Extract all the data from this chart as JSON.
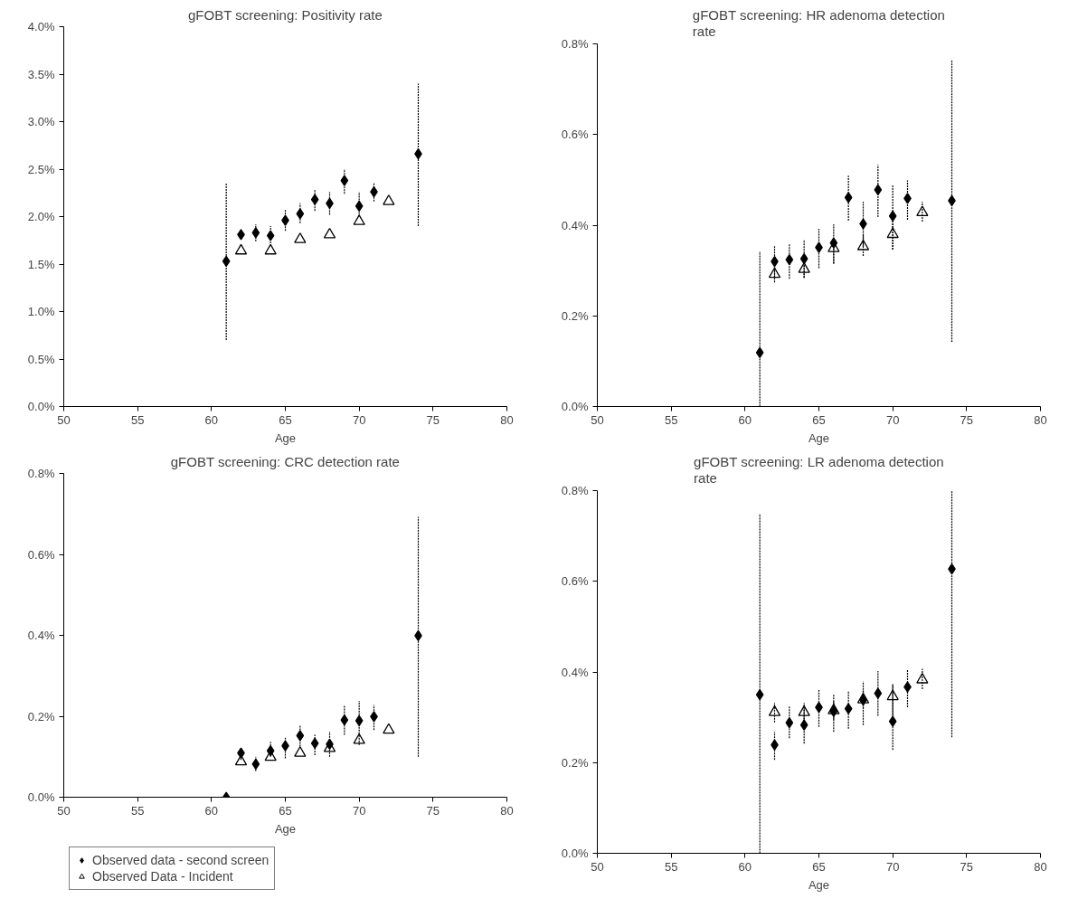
{
  "chart_data": [
    {
      "type": "scatter",
      "title": "gFOBT screening: Positivity rate",
      "xlabel": "Age",
      "xlim": [
        50,
        80
      ],
      "xticks": [
        50,
        55,
        60,
        65,
        70,
        75,
        80
      ],
      "ylim": [
        0,
        4.0
      ],
      "yticks": [
        {
          "value": 0,
          "label": "0.0%"
        },
        {
          "value": 0.5,
          "label": "0.5%"
        },
        {
          "value": 1.0,
          "label": "1.0%"
        },
        {
          "value": 1.5,
          "label": "1.5%"
        },
        {
          "value": 2.0,
          "label": "2.0%"
        },
        {
          "value": 2.5,
          "label": "2.5%"
        },
        {
          "value": 3.0,
          "label": "3.0%"
        },
        {
          "value": 3.5,
          "label": "3.5%"
        },
        {
          "value": 4.0,
          "label": "4.0%"
        }
      ],
      "grid": false,
      "legend": false,
      "series": [
        {
          "color": "#000000",
          "marker": "diamond",
          "x": [
            61,
            62,
            63,
            64,
            65,
            66,
            67,
            68,
            69,
            70,
            71,
            74
          ],
          "values": [
            1.53,
            1.81,
            1.83,
            1.8,
            1.96,
            2.03,
            2.18,
            2.14,
            2.38,
            2.11,
            2.26,
            2.66
          ],
          "errors": [
            [
              0.7,
              2.35
            ],
            [
              1.76,
              1.87
            ],
            [
              1.74,
              1.92
            ],
            [
              1.69,
              1.9
            ],
            [
              1.85,
              2.07
            ],
            [
              1.93,
              2.14
            ],
            [
              2.06,
              2.28
            ],
            [
              2.02,
              2.26
            ],
            [
              2.24,
              2.5
            ],
            [
              2.0,
              2.26
            ],
            [
              2.16,
              2.35
            ],
            [
              1.9,
              3.4
            ]
          ]
        },
        {
          "color": "#000000",
          "marker": "triangle",
          "x": [
            62,
            64,
            66,
            68,
            70,
            72
          ],
          "values": [
            1.64,
            1.64,
            1.76,
            1.81,
            1.95,
            2.16
          ]
        }
      ]
    },
    {
      "type": "scatter",
      "title": "gFOBT screening: HR adenoma detection rate",
      "xlabel": "Age",
      "xlim": [
        50,
        80
      ],
      "xticks": [
        50,
        55,
        60,
        65,
        70,
        75,
        80
      ],
      "ylim": [
        0,
        0.8
      ],
      "yticks": [
        {
          "value": 0,
          "label": "0.0%"
        },
        {
          "value": 0.2,
          "label": "0.2%"
        },
        {
          "value": 0.4,
          "label": "0.4%"
        },
        {
          "value": 0.6,
          "label": "0.6%"
        },
        {
          "value": 0.8,
          "label": "0.8%"
        }
      ],
      "grid": false,
      "legend": false,
      "series": [
        {
          "color": "#000000",
          "marker": "diamond",
          "x": [
            61,
            62,
            63,
            64,
            65,
            66,
            67,
            68,
            69,
            70,
            71,
            74
          ],
          "values": [
            0.119,
            0.32,
            0.324,
            0.326,
            0.351,
            0.361,
            0.461,
            0.403,
            0.478,
            0.42,
            0.459,
            0.454
          ],
          "errors": [
            [
              0.0,
              0.342
            ],
            [
              0.284,
              0.354
            ],
            [
              0.282,
              0.358
            ],
            [
              0.284,
              0.368
            ],
            [
              0.305,
              0.392
            ],
            [
              0.315,
              0.402
            ],
            [
              0.41,
              0.509
            ],
            [
              0.353,
              0.452
            ],
            [
              0.418,
              0.533
            ],
            [
              0.346,
              0.488
            ],
            [
              0.412,
              0.499
            ],
            [
              0.142,
              0.765
            ]
          ]
        },
        {
          "color": "#000000",
          "marker": "triangle",
          "x": [
            62,
            64,
            66,
            68,
            70,
            72
          ],
          "values": [
            0.292,
            0.303,
            0.349,
            0.353,
            0.38,
            0.428
          ],
          "errors": [
            [
              0.274,
              0.315
            ],
            [
              0.284,
              0.322
            ],
            [
              0.315,
              0.366
            ],
            [
              0.332,
              0.38
            ],
            [
              0.346,
              0.408
            ],
            [
              0.408,
              0.452
            ]
          ]
        }
      ]
    },
    {
      "type": "scatter",
      "title": "gFOBT screening: CRC detection rate",
      "xlabel": "Age",
      "xlim": [
        50,
        80
      ],
      "xticks": [
        50,
        55,
        60,
        65,
        70,
        75,
        80
      ],
      "ylim": [
        0,
        0.8
      ],
      "yticks": [
        {
          "value": 0,
          "label": "0.0%"
        },
        {
          "value": 0.2,
          "label": "0.2%"
        },
        {
          "value": 0.4,
          "label": "0.4%"
        },
        {
          "value": 0.6,
          "label": "0.6%"
        },
        {
          "value": 0.8,
          "label": "0.8%"
        }
      ],
      "grid": false,
      "legend": "bottom",
      "series": [
        {
          "name": "Observed data - second screen",
          "color": "#000000",
          "marker": "diamond",
          "x": [
            61,
            62,
            63,
            64,
            65,
            66,
            67,
            68,
            69,
            70,
            71,
            74
          ],
          "values": [
            0.0,
            0.109,
            0.082,
            0.115,
            0.127,
            0.152,
            0.133,
            0.131,
            0.191,
            0.189,
            0.199,
            0.399
          ],
          "errors": [
            null,
            [
              0.092,
              0.121
            ],
            [
              0.065,
              0.1
            ],
            [
              0.1,
              0.137
            ],
            [
              0.096,
              0.147
            ],
            [
              0.125,
              0.178
            ],
            [
              0.104,
              0.154
            ],
            [
              0.1,
              0.162
            ],
            [
              0.154,
              0.228
            ],
            [
              0.129,
              0.238
            ],
            [
              0.166,
              0.228
            ],
            [
              0.1,
              0.693
            ]
          ]
        },
        {
          "name": "Observed Data - Incident",
          "color": "#000000",
          "marker": "triangle",
          "x": [
            62,
            64,
            66,
            68,
            70,
            72
          ],
          "values": [
            0.088,
            0.099,
            0.109,
            0.121,
            0.141,
            0.166
          ]
        }
      ]
    },
    {
      "type": "scatter",
      "title": "gFOBT screening: LR adenoma detection rate",
      "xlabel": "Age",
      "xlim": [
        50,
        80
      ],
      "xticks": [
        50,
        55,
        60,
        65,
        70,
        75,
        80
      ],
      "ylim": [
        0,
        0.8
      ],
      "yticks": [
        {
          "value": 0,
          "label": "0.0%"
        },
        {
          "value": 0.2,
          "label": "0.2%"
        },
        {
          "value": 0.4,
          "label": "0.4%"
        },
        {
          "value": 0.6,
          "label": "0.6%"
        },
        {
          "value": 0.8,
          "label": "0.8%"
        }
      ],
      "grid": false,
      "legend": false,
      "series": [
        {
          "color": "#000000",
          "marker": "diamond",
          "x": [
            61,
            62,
            63,
            64,
            65,
            66,
            67,
            68,
            69,
            70,
            71,
            74
          ],
          "values": [
            0.35,
            0.239,
            0.288,
            0.283,
            0.322,
            0.313,
            0.319,
            0.338,
            0.353,
            0.291,
            0.367,
            0.627
          ],
          "errors": [
            [
              0.0,
              0.749
            ],
            [
              0.206,
              0.268
            ],
            [
              0.254,
              0.324
            ],
            [
              0.242,
              0.32
            ],
            [
              0.279,
              0.36
            ],
            [
              0.268,
              0.351
            ],
            [
              0.275,
              0.358
            ],
            [
              0.283,
              0.379
            ],
            [
              0.303,
              0.402
            ],
            [
              0.228,
              0.372
            ],
            [
              0.322,
              0.406
            ],
            [
              0.256,
              0.8
            ]
          ]
        },
        {
          "color": "#000000",
          "marker": "triangle",
          "x": [
            62,
            64,
            66,
            68,
            70,
            72
          ],
          "values": [
            0.311,
            0.311,
            0.315,
            0.339,
            0.346,
            0.383
          ],
          "errors": [
            [
              0.289,
              0.332
            ],
            [
              0.289,
              0.332
            ],
            [
              0.295,
              0.335
            ],
            [
              0.319,
              0.359
            ],
            [
              0.303,
              0.374
            ],
            [
              0.362,
              0.407
            ]
          ]
        }
      ]
    }
  ]
}
